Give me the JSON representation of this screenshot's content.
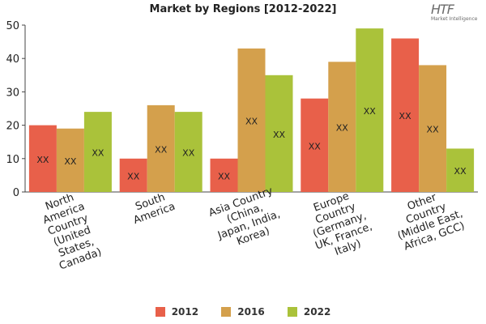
{
  "header": {
    "title": "Market by Regions [2012-2022]",
    "logo_mark": "HTF",
    "logo_sub": "Market Intelligence"
  },
  "colors": {
    "2012": "#e8604a",
    "2016": "#d4a04c",
    "2022": "#aac23a"
  },
  "chart_data": {
    "type": "bar",
    "title": "Market by Regions [2012-2022]",
    "xlabel": "",
    "ylabel": "",
    "ylim": [
      0,
      50
    ],
    "yticks": [
      0,
      10,
      20,
      30,
      40,
      50
    ],
    "grid": false,
    "legend": "bottom",
    "categories": [
      [
        "North",
        "America",
        "Country",
        "(United",
        "States,",
        "Canada)"
      ],
      [
        "South",
        "America"
      ],
      [
        "Asia Country",
        "(China,",
        "Japan, India,",
        "Korea)"
      ],
      [
        "Europe",
        "Country",
        "(Germany,",
        "UK, France,",
        "Italy)"
      ],
      [
        "Other",
        "Country",
        "(Middle East,",
        "Africa, GCC)"
      ]
    ],
    "series": [
      {
        "name": "2012",
        "values": [
          20,
          10,
          10,
          28,
          46
        ]
      },
      {
        "name": "2016",
        "values": [
          19,
          26,
          43,
          39,
          38
        ]
      },
      {
        "name": "2022",
        "values": [
          24,
          24,
          35,
          49,
          13
        ]
      }
    ],
    "data_label": "XX"
  }
}
